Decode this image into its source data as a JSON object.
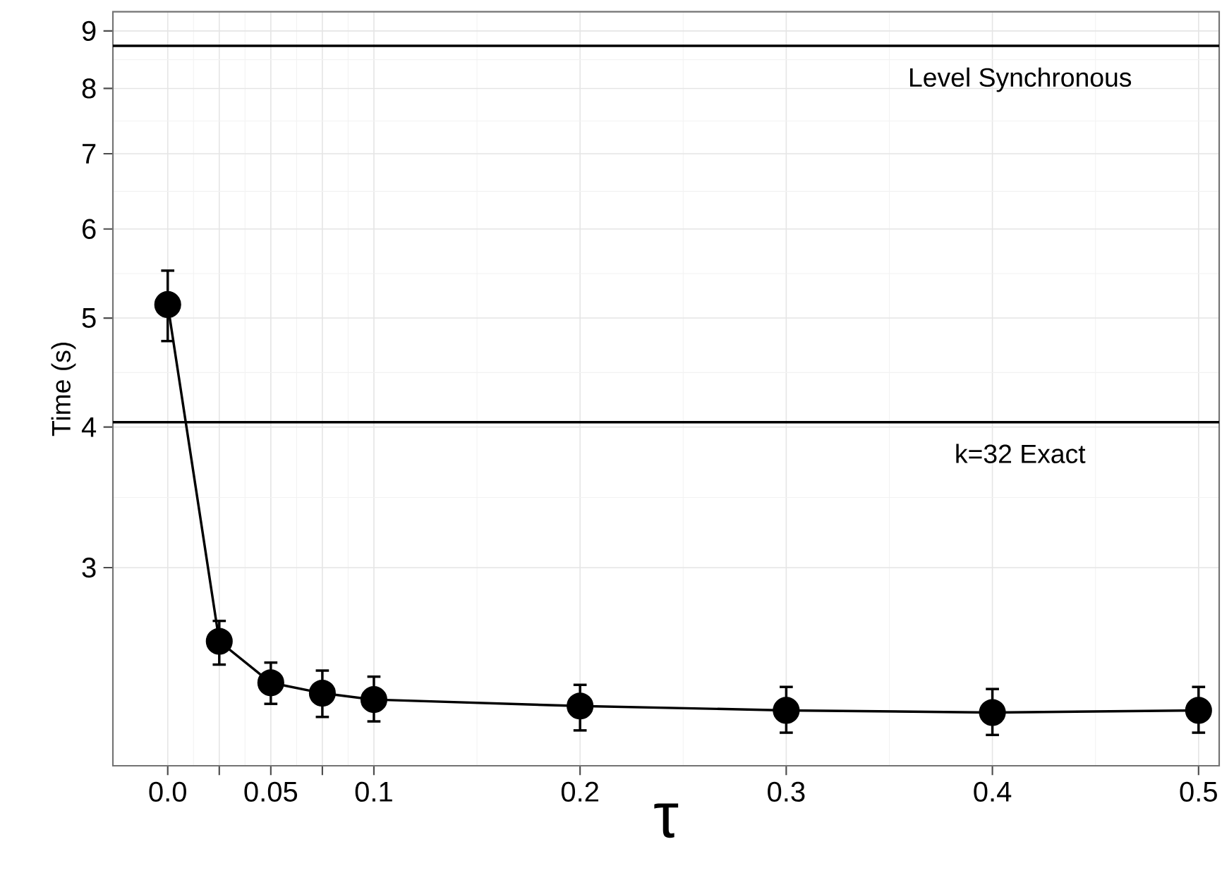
{
  "chart_data": {
    "type": "line",
    "xlabel": "τ",
    "ylabel": "Time (s)",
    "x": [
      0.0,
      0.025,
      0.05,
      0.075,
      0.1,
      0.2,
      0.3,
      0.4,
      0.5
    ],
    "series": [
      {
        "color": "#000000",
        "values": [
          5.14,
          2.58,
          2.37,
          2.32,
          2.29,
          2.26,
          2.24,
          2.23,
          2.24
        ],
        "errors": [
          [
            4.77,
            5.51
          ],
          [
            2.46,
            2.69
          ],
          [
            2.27,
            2.47
          ],
          [
            2.21,
            2.43
          ],
          [
            2.19,
            2.4
          ],
          [
            2.15,
            2.36
          ],
          [
            2.14,
            2.35
          ],
          [
            2.13,
            2.34
          ],
          [
            2.14,
            2.35
          ]
        ]
      }
    ],
    "xlim": [
      -0.0266,
      0.51
    ],
    "ylim": [
      2.0,
      9.36
    ],
    "xticks": [
      {
        "value": 0.0,
        "label": "0.0"
      },
      {
        "value": 0.025,
        "label": null
      },
      0.05,
      {
        "value": 0.075,
        "label": null
      },
      0.1,
      0.2,
      0.3,
      0.4,
      0.5
    ],
    "yticks": [
      3,
      4,
      5,
      6,
      7,
      8,
      9
    ],
    "log": "y",
    "grid": true,
    "marker": "circle",
    "line_style": "solid",
    "ref_lines": [
      {
        "axis": "y",
        "value": 8.73,
        "label": "Level Synchronous",
        "color": "#000000"
      },
      {
        "axis": "y",
        "value": 4.04,
        "color": "#000000"
      }
    ],
    "annotations": [
      "k=32 Exact"
    ]
  }
}
